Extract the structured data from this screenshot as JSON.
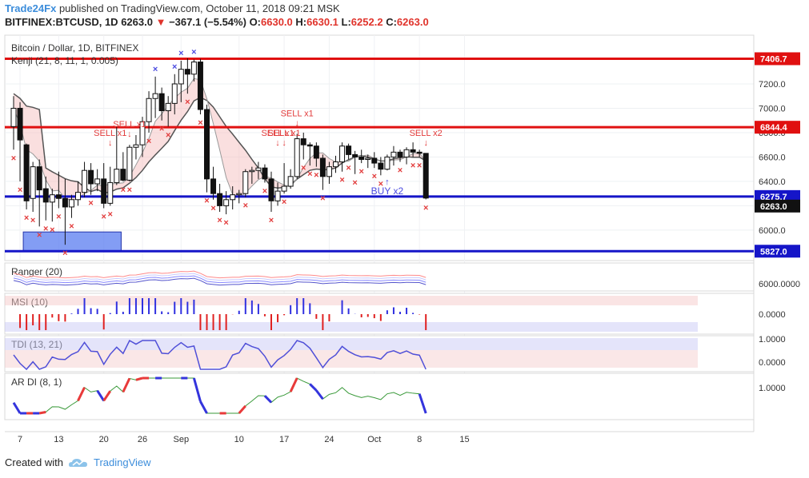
{
  "header": {
    "brand": "Trade24Fx",
    "published": "published on TradingView.com, October 11, 2018 09:21 MSK",
    "symbol": "BITFINEX:BTCUSD, 1D",
    "last": "6263.0",
    "change_arrow": "▼",
    "change": "−367.1 (−5.54%)",
    "o_label": "O:",
    "o": "6630.0",
    "h_label": "H:",
    "h": "6630.1",
    "l_label": "L:",
    "l": "6252.2",
    "c_label": "C:",
    "c": "6263.0"
  },
  "footer": {
    "created_with": "Created with",
    "tradingview": "TradingView",
    "logo_icon": "tradingview-cloud-icon"
  },
  "colors": {
    "up": "#ffffff",
    "down": "#111111",
    "red_line": "#e01010",
    "blue_line": "#1515c8",
    "sell_x": "#e23b3b",
    "buy_x": "#4a4ae0",
    "kenji_line": "#555555"
  },
  "chart_data": {
    "type": "candlestick",
    "title": "Bitcoin / Dollar, 1D, BITFINEX",
    "indicator": "Kenji (21, 8, 11, 1, 0.005)",
    "ylim": [
      5750,
      7600
    ],
    "y_ticks": [
      6000.0,
      6200.0,
      6400.0,
      6600.0,
      6800.0,
      7000.0,
      7200.0,
      7400.0
    ],
    "x_labels": [
      {
        "i": 1,
        "label": "7"
      },
      {
        "i": 7,
        "label": "13"
      },
      {
        "i": 14,
        "label": "20"
      },
      {
        "i": 20,
        "label": "26"
      },
      {
        "i": 26,
        "label": "Sep"
      },
      {
        "i": 35,
        "label": "10"
      },
      {
        "i": 42,
        "label": "17"
      },
      {
        "i": 49,
        "label": "24"
      },
      {
        "i": 56,
        "label": "Oct"
      },
      {
        "i": 63,
        "label": "8"
      },
      {
        "i": 70,
        "label": "15"
      }
    ],
    "ohlc": [
      [
        6850,
        7100,
        6660,
        7000
      ],
      [
        7000,
        7050,
        6400,
        6740
      ],
      [
        6700,
        6710,
        6170,
        6240
      ],
      [
        6260,
        6560,
        6150,
        6520
      ],
      [
        6520,
        6580,
        6030,
        6330
      ],
      [
        6340,
        6440,
        6080,
        6230
      ],
      [
        6230,
        6340,
        6070,
        6290
      ],
      [
        6290,
        6480,
        6180,
        6260
      ],
      [
        6260,
        6420,
        5880,
        6190
      ],
      [
        6190,
        6290,
        6100,
        6250
      ],
      [
        6250,
        6400,
        6200,
        6310
      ],
      [
        6310,
        6560,
        6270,
        6490
      ],
      [
        6490,
        6550,
        6290,
        6380
      ],
      [
        6380,
        6500,
        6320,
        6420
      ],
      [
        6420,
        6550,
        6180,
        6220
      ],
      [
        6220,
        6520,
        6200,
        6390
      ],
      [
        6390,
        6850,
        6370,
        6500
      ],
      [
        6500,
        6640,
        6400,
        6410
      ],
      [
        6410,
        6700,
        6400,
        6680
      ],
      [
        6680,
        6780,
        6580,
        6700
      ],
      [
        6700,
        6930,
        6600,
        6890
      ],
      [
        6890,
        7140,
        6800,
        7080
      ],
      [
        7080,
        7260,
        6920,
        7120
      ],
      [
        7120,
        7170,
        6900,
        6980
      ],
      [
        6980,
        7100,
        6850,
        7040
      ],
      [
        7040,
        7280,
        6950,
        7200
      ],
      [
        7200,
        7390,
        7050,
        7320
      ],
      [
        7320,
        7410,
        7120,
        7280
      ],
      [
        7280,
        7400,
        7220,
        7380
      ],
      [
        7380,
        7405,
        6950,
        6990
      ],
      [
        6990,
        7030,
        6310,
        6420
      ],
      [
        6420,
        6520,
        6250,
        6300
      ],
      [
        6300,
        6380,
        6150,
        6200
      ],
      [
        6200,
        6320,
        6130,
        6250
      ],
      [
        6250,
        6360,
        6170,
        6290
      ],
      [
        6290,
        6330,
        6220,
        6300
      ],
      [
        6300,
        6500,
        6270,
        6480
      ],
      [
        6480,
        6520,
        6380,
        6490
      ],
      [
        6490,
        6560,
        6420,
        6510
      ],
      [
        6510,
        6540,
        6390,
        6420
      ],
      [
        6420,
        6480,
        6150,
        6240
      ],
      [
        6240,
        6390,
        6200,
        6320
      ],
      [
        6320,
        6550,
        6300,
        6360
      ],
      [
        6360,
        6500,
        6340,
        6440
      ],
      [
        6440,
        6790,
        6420,
        6750
      ],
      [
        6750,
        6800,
        6580,
        6700
      ],
      [
        6700,
        6720,
        6530,
        6690
      ],
      [
        6690,
        6720,
        6520,
        6590
      ],
      [
        6590,
        6620,
        6330,
        6440
      ],
      [
        6440,
        6560,
        6380,
        6520
      ],
      [
        6520,
        6610,
        6470,
        6560
      ],
      [
        6560,
        6720,
        6480,
        6690
      ],
      [
        6690,
        6710,
        6580,
        6620
      ],
      [
        6620,
        6650,
        6460,
        6600
      ],
      [
        6600,
        6660,
        6550,
        6580
      ],
      [
        6580,
        6620,
        6510,
        6590
      ],
      [
        6590,
        6640,
        6510,
        6550
      ],
      [
        6550,
        6600,
        6450,
        6500
      ],
      [
        6500,
        6620,
        6490,
        6600
      ],
      [
        6600,
        6690,
        6530,
        6640
      ],
      [
        6640,
        6660,
        6560,
        6600
      ],
      [
        6600,
        6680,
        6540,
        6660
      ],
      [
        6660,
        6720,
        6600,
        6640
      ],
      [
        6640,
        6660,
        6600,
        6630
      ],
      [
        6630,
        6630.1,
        6252.2,
        6263.0
      ]
    ],
    "sell_markers": [
      {
        "i": 15,
        "label": "SELL x1"
      },
      {
        "i": 18,
        "label": "SELL x1"
      },
      {
        "i": 41,
        "label": "SELL x1"
      },
      {
        "i": 42,
        "label": "SELL x1"
      },
      {
        "i": 44,
        "label": "SELL x1"
      },
      {
        "i": 64,
        "label": "SELL x2"
      }
    ],
    "buy_markers": [
      {
        "i": 58,
        "label": "BUY x2"
      }
    ],
    "price_lines": [
      {
        "value": 7406.7,
        "label": "7406.7",
        "color": "#e01010"
      },
      {
        "value": 6844.4,
        "label": "6844.4",
        "color": "#e01010"
      },
      {
        "value": 6275.7,
        "label": "6275.7",
        "color": "#1515c8"
      },
      {
        "value": 5827.0,
        "label": "5827.0",
        "color": "#1515c8"
      }
    ],
    "last_price": {
      "value": 6263.0,
      "label": "6263.0"
    },
    "panes": [
      {
        "name": "Ranger (20)",
        "label": "6000.0000"
      },
      {
        "name": "MSI (10)",
        "label": "0.0000"
      },
      {
        "name": "TDI (13, 21)",
        "labels": [
          "1.0000",
          "0.0000"
        ]
      },
      {
        "name": "AR DI (8, 1)",
        "label": "1.0000"
      }
    ]
  }
}
